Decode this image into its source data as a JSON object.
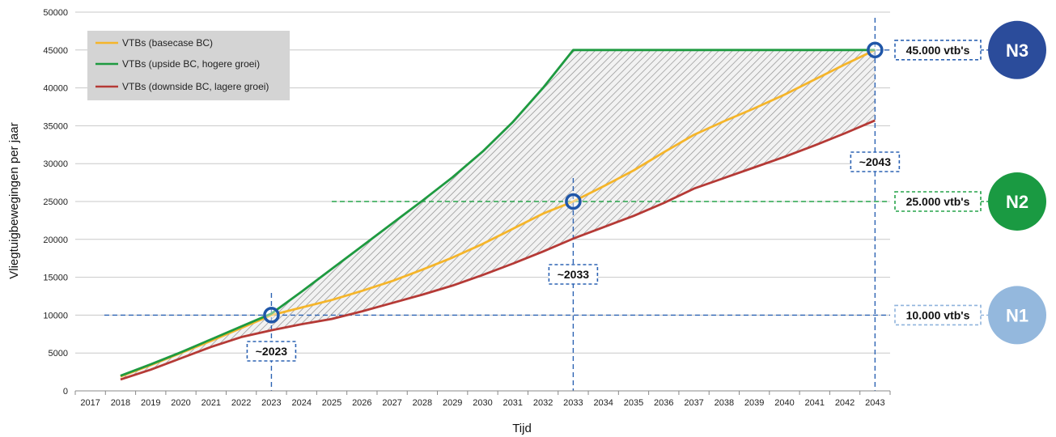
{
  "chart_data": {
    "type": "line",
    "title": "",
    "xlabel": "Tijd",
    "ylabel": "Vliegtuigbewegingen per jaar",
    "ylim": [
      0,
      50000
    ],
    "yticks": [
      "0",
      "5000",
      "10000",
      "15000",
      "20000",
      "25000",
      "30000",
      "35000",
      "40000",
      "45000",
      "50000"
    ],
    "x": [
      "2017",
      "2018",
      "2019",
      "2020",
      "2021",
      "2022",
      "2023",
      "2024",
      "2025",
      "2026",
      "2027",
      "2028",
      "2029",
      "2030",
      "2031",
      "2032",
      "2033",
      "2034",
      "2035",
      "2036",
      "2037",
      "2038",
      "2039",
      "2040",
      "2041",
      "2042",
      "2043"
    ],
    "grid": "horizontal",
    "legend_position": "top-left",
    "series": [
      {
        "name": "VTBs (basecase BC)",
        "color": "#f5b52a",
        "values": [
          null,
          1900,
          3400,
          5000,
          6600,
          8300,
          10000,
          11000,
          12000,
          13200,
          14500,
          16000,
          17600,
          19400,
          21400,
          23400,
          25000,
          27000,
          29100,
          31500,
          33800,
          35600,
          37300,
          39100,
          41100,
          43100,
          45000
        ]
      },
      {
        "name": "VTBs (upside BC, hogere groei)",
        "color": "#1e9a40",
        "values": [
          null,
          2000,
          3500,
          5100,
          6800,
          8500,
          10200,
          13100,
          16100,
          19100,
          22100,
          25100,
          28200,
          31600,
          35500,
          40000,
          45000,
          45000,
          45000,
          45000,
          45000,
          45000,
          45000,
          45000,
          45000,
          45000,
          45000
        ]
      },
      {
        "name": "VTBs (downside BC, lagere groei)",
        "color": "#b53a36",
        "values": [
          null,
          1500,
          2800,
          4300,
          5800,
          7100,
          8000,
          8800,
          9500,
          10500,
          11600,
          12700,
          13900,
          15300,
          16800,
          18400,
          20100,
          21600,
          23100,
          24800,
          26700,
          28100,
          29500,
          30900,
          32400,
          34000,
          35700
        ]
      }
    ],
    "milestones": [
      {
        "id": "N1",
        "year_label": "~2023",
        "year": 2023,
        "level": 10000,
        "level_label": "10.000 vtb's",
        "color": "#94b8dd"
      },
      {
        "id": "N2",
        "year_label": "~2033",
        "year": 2033,
        "level": 25000,
        "level_label": "25.000 vtb's",
        "color": "#1a9a42"
      },
      {
        "id": "N3",
        "year_label": "~2043",
        "year": 2043,
        "level": 45000,
        "level_label": "45.000 vtb's",
        "color": "#2b4c9b"
      }
    ]
  }
}
